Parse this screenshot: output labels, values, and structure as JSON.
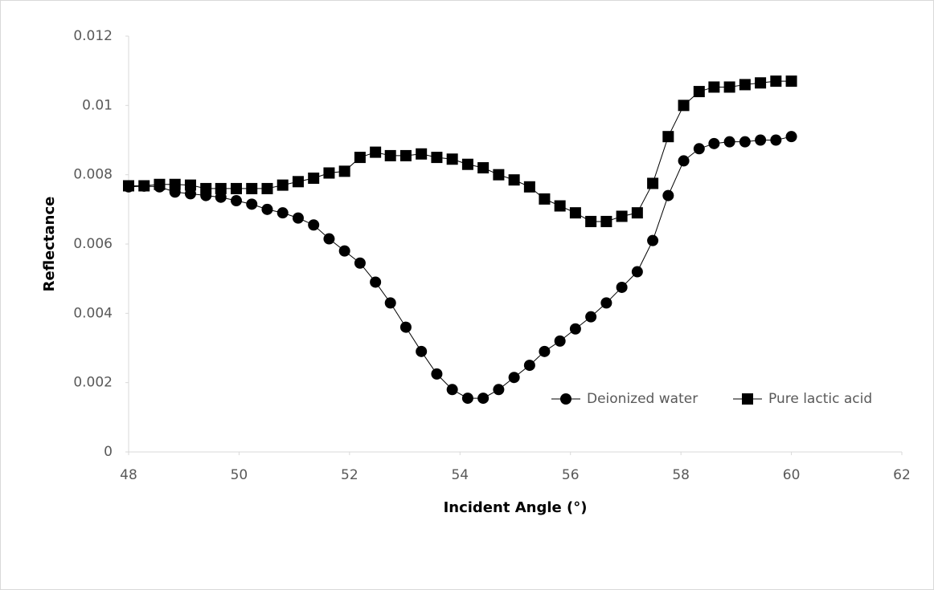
{
  "chart_data": {
    "type": "line",
    "xlabel": "Incident Angle (°)",
    "ylabel": "Reflectance",
    "x": [
      48,
      48.28,
      48.56,
      48.84,
      49.12,
      49.4,
      49.67,
      49.95,
      50.23,
      50.51,
      50.79,
      51.07,
      51.35,
      51.63,
      51.91,
      52.19,
      52.47,
      52.74,
      53.02,
      53.3,
      53.58,
      53.86,
      54.14,
      54.42,
      54.7,
      54.98,
      55.26,
      55.53,
      55.81,
      56.09,
      56.37,
      56.65,
      56.93,
      57.21,
      57.49,
      57.77,
      58.05,
      58.33,
      58.6,
      58.88,
      59.16,
      59.44,
      59.72,
      60
    ],
    "series": [
      {
        "name": "Deionized water",
        "color": "#000000",
        "marker": "circle",
        "values": [
          0.00765,
          0.00767,
          0.00765,
          0.0075,
          0.00745,
          0.0074,
          0.00735,
          0.00725,
          0.00715,
          0.007,
          0.0069,
          0.00675,
          0.00655,
          0.00615,
          0.0058,
          0.00545,
          0.0049,
          0.0043,
          0.0036,
          0.0029,
          0.00225,
          0.0018,
          0.00155,
          0.00155,
          0.0018,
          0.00215,
          0.0025,
          0.0029,
          0.0032,
          0.00355,
          0.0039,
          0.0043,
          0.00475,
          0.0052,
          0.0061,
          0.0074,
          0.0084,
          0.00875,
          0.0089,
          0.00895,
          0.00895,
          0.009,
          0.009,
          0.0091
        ]
      },
      {
        "name": "Pure lactic acid",
        "color": "#000000",
        "marker": "square",
        "values": [
          0.00768,
          0.00768,
          0.00772,
          0.00772,
          0.0077,
          0.0076,
          0.0076,
          0.0076,
          0.0076,
          0.0076,
          0.0077,
          0.0078,
          0.0079,
          0.00805,
          0.0081,
          0.0085,
          0.00865,
          0.00855,
          0.00855,
          0.0086,
          0.0085,
          0.00845,
          0.0083,
          0.0082,
          0.008,
          0.00785,
          0.00765,
          0.0073,
          0.0071,
          0.0069,
          0.00665,
          0.00665,
          0.0068,
          0.0069,
          0.00775,
          0.0091,
          0.01,
          0.0104,
          0.01053,
          0.01053,
          0.0106,
          0.01065,
          0.0107,
          0.0107
        ]
      }
    ],
    "xlim": [
      48,
      62
    ],
    "xticks": [
      48,
      50,
      52,
      54,
      56,
      58,
      60,
      62
    ],
    "ylim": [
      0,
      0.012
    ],
    "yticks": [
      0,
      0.002,
      0.004,
      0.006,
      0.008,
      0.01,
      0.012
    ],
    "grid": false,
    "legend": "lower right"
  }
}
